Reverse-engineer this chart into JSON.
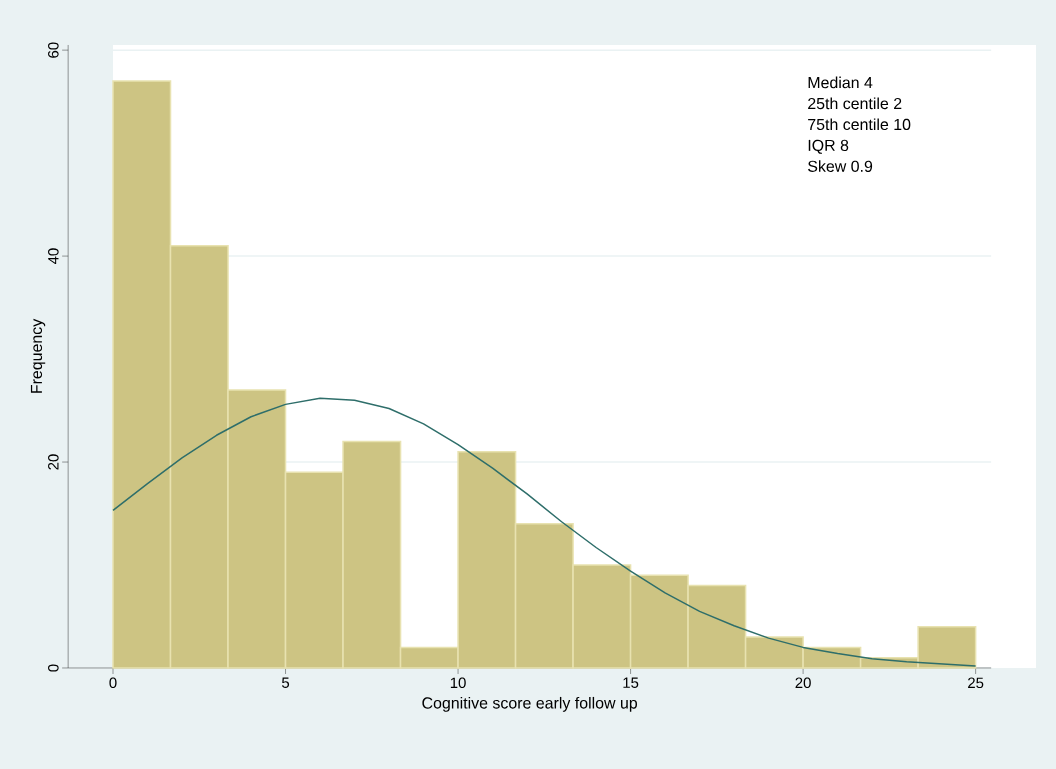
{
  "chart_data": {
    "type": "histogram",
    "xlabel": "Cognitive score early follow up",
    "ylabel": "Frequency",
    "bins": [
      0,
      1.6667,
      3.3333,
      5,
      6.6667,
      8.3333,
      10,
      11.6667,
      13.3333,
      15,
      16.6667,
      18.3333,
      20,
      21.6667,
      23.3333,
      25
    ],
    "values": [
      57,
      41,
      27,
      19,
      22,
      2,
      21,
      14,
      10,
      9,
      8,
      3,
      2,
      1,
      4
    ],
    "color": "#cdc483",
    "series": [
      {
        "type": "line",
        "color": "#2e6e6a",
        "x": [
          0,
          1,
          2,
          3,
          4,
          5,
          6,
          7,
          8,
          9,
          10,
          11,
          12,
          13,
          14,
          15,
          16,
          17,
          18,
          19,
          20,
          21,
          22,
          23,
          24,
          25
        ],
        "values": [
          15.3,
          17.9,
          20.4,
          22.6,
          24.4,
          25.6,
          26.2,
          26.0,
          25.2,
          23.7,
          21.7,
          19.4,
          16.9,
          14.2,
          11.7,
          9.4,
          7.3,
          5.5,
          4.1,
          2.9,
          2.0,
          1.4,
          0.9,
          0.6,
          0.4,
          0.2
        ]
      }
    ],
    "xlim": [
      -1.3,
      25.45
    ],
    "ylim": [
      0,
      60.5
    ],
    "xticks": [
      0,
      5,
      10,
      15,
      20,
      25
    ],
    "yticks": [
      0,
      20,
      40,
      60
    ],
    "grid": "y",
    "annotations": [
      "Median 4",
      "25th centile 2",
      "75th centile 10",
      "IQR 8",
      "Skew 0.9"
    ]
  }
}
